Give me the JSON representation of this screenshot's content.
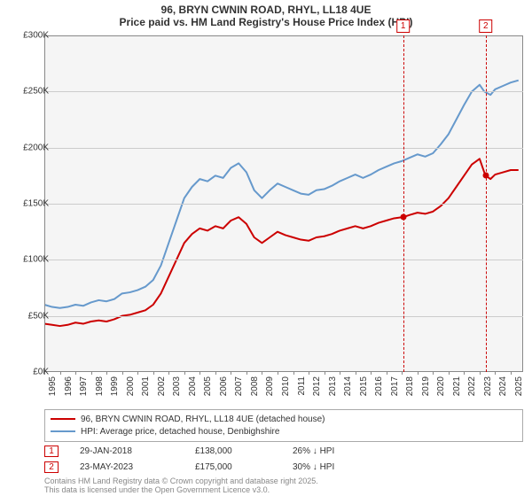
{
  "title": {
    "line1": "96, BRYN CWNIN ROAD, RHYL, LL18 4UE",
    "line2": "Price paid vs. HM Land Registry's House Price Index (HPI)"
  },
  "chart": {
    "type": "line",
    "background_color": "#f5f5f5",
    "plot_border_color": "#888888",
    "grid_color": "#cccccc",
    "x": {
      "min": 1995.0,
      "max": 2025.8,
      "ticks": [
        1995,
        1996,
        1997,
        1998,
        1999,
        2000,
        2001,
        2002,
        2003,
        2004,
        2005,
        2006,
        2007,
        2008,
        2009,
        2010,
        2011,
        2012,
        2013,
        2014,
        2015,
        2016,
        2017,
        2018,
        2019,
        2020,
        2021,
        2022,
        2023,
        2024,
        2025
      ],
      "label_fontsize": 10
    },
    "y": {
      "min": 0,
      "max": 300000,
      "tick_step": 50000,
      "tick_labels": [
        "£0K",
        "£50K",
        "£100K",
        "£150K",
        "£200K",
        "£250K",
        "£300K"
      ],
      "label_fontsize": 10
    },
    "series": [
      {
        "id": "property",
        "label": "96, BRYN CWNIN ROAD, RHYL, LL18 4UE (detached house)",
        "color": "#cc0000",
        "line_width": 2,
        "points": [
          [
            1995.0,
            43000
          ],
          [
            1995.5,
            42000
          ],
          [
            1996.0,
            41000
          ],
          [
            1996.5,
            42000
          ],
          [
            1997.0,
            44000
          ],
          [
            1997.5,
            43000
          ],
          [
            1998.0,
            45000
          ],
          [
            1998.5,
            46000
          ],
          [
            1999.0,
            45000
          ],
          [
            1999.5,
            47000
          ],
          [
            2000.0,
            50000
          ],
          [
            2000.5,
            51000
          ],
          [
            2001.0,
            53000
          ],
          [
            2001.5,
            55000
          ],
          [
            2002.0,
            60000
          ],
          [
            2002.5,
            70000
          ],
          [
            2003.0,
            85000
          ],
          [
            2003.5,
            100000
          ],
          [
            2004.0,
            115000
          ],
          [
            2004.5,
            123000
          ],
          [
            2005.0,
            128000
          ],
          [
            2005.5,
            126000
          ],
          [
            2006.0,
            130000
          ],
          [
            2006.5,
            128000
          ],
          [
            2007.0,
            135000
          ],
          [
            2007.5,
            138000
          ],
          [
            2008.0,
            132000
          ],
          [
            2008.5,
            120000
          ],
          [
            2009.0,
            115000
          ],
          [
            2009.5,
            120000
          ],
          [
            2010.0,
            125000
          ],
          [
            2010.5,
            122000
          ],
          [
            2011.0,
            120000
          ],
          [
            2011.5,
            118000
          ],
          [
            2012.0,
            117000
          ],
          [
            2012.5,
            120000
          ],
          [
            2013.0,
            121000
          ],
          [
            2013.5,
            123000
          ],
          [
            2014.0,
            126000
          ],
          [
            2014.5,
            128000
          ],
          [
            2015.0,
            130000
          ],
          [
            2015.5,
            128000
          ],
          [
            2016.0,
            130000
          ],
          [
            2016.5,
            133000
          ],
          [
            2017.0,
            135000
          ],
          [
            2017.5,
            137000
          ],
          [
            2018.0,
            138000
          ],
          [
            2018.08,
            138000
          ],
          [
            2018.5,
            140000
          ],
          [
            2019.0,
            142000
          ],
          [
            2019.5,
            141000
          ],
          [
            2020.0,
            143000
          ],
          [
            2020.5,
            148000
          ],
          [
            2021.0,
            155000
          ],
          [
            2021.5,
            165000
          ],
          [
            2022.0,
            175000
          ],
          [
            2022.5,
            185000
          ],
          [
            2023.0,
            190000
          ],
          [
            2023.3,
            178000
          ],
          [
            2023.4,
            175000
          ],
          [
            2023.7,
            172000
          ],
          [
            2024.0,
            176000
          ],
          [
            2024.5,
            178000
          ],
          [
            2025.0,
            180000
          ],
          [
            2025.5,
            180000
          ]
        ]
      },
      {
        "id": "hpi",
        "label": "HPI: Average price, detached house, Denbighshire",
        "color": "#6699cc",
        "line_width": 2,
        "points": [
          [
            1995.0,
            60000
          ],
          [
            1995.5,
            58000
          ],
          [
            1996.0,
            57000
          ],
          [
            1996.5,
            58000
          ],
          [
            1997.0,
            60000
          ],
          [
            1997.5,
            59000
          ],
          [
            1998.0,
            62000
          ],
          [
            1998.5,
            64000
          ],
          [
            1999.0,
            63000
          ],
          [
            1999.5,
            65000
          ],
          [
            2000.0,
            70000
          ],
          [
            2000.5,
            71000
          ],
          [
            2001.0,
            73000
          ],
          [
            2001.5,
            76000
          ],
          [
            2002.0,
            82000
          ],
          [
            2002.5,
            95000
          ],
          [
            2003.0,
            115000
          ],
          [
            2003.5,
            135000
          ],
          [
            2004.0,
            155000
          ],
          [
            2004.5,
            165000
          ],
          [
            2005.0,
            172000
          ],
          [
            2005.5,
            170000
          ],
          [
            2006.0,
            175000
          ],
          [
            2006.5,
            173000
          ],
          [
            2007.0,
            182000
          ],
          [
            2007.5,
            186000
          ],
          [
            2008.0,
            178000
          ],
          [
            2008.5,
            162000
          ],
          [
            2009.0,
            155000
          ],
          [
            2009.5,
            162000
          ],
          [
            2010.0,
            168000
          ],
          [
            2010.5,
            165000
          ],
          [
            2011.0,
            162000
          ],
          [
            2011.5,
            159000
          ],
          [
            2012.0,
            158000
          ],
          [
            2012.5,
            162000
          ],
          [
            2013.0,
            163000
          ],
          [
            2013.5,
            166000
          ],
          [
            2014.0,
            170000
          ],
          [
            2014.5,
            173000
          ],
          [
            2015.0,
            176000
          ],
          [
            2015.5,
            173000
          ],
          [
            2016.0,
            176000
          ],
          [
            2016.5,
            180000
          ],
          [
            2017.0,
            183000
          ],
          [
            2017.5,
            186000
          ],
          [
            2018.0,
            188000
          ],
          [
            2018.5,
            191000
          ],
          [
            2019.0,
            194000
          ],
          [
            2019.5,
            192000
          ],
          [
            2020.0,
            195000
          ],
          [
            2020.5,
            203000
          ],
          [
            2021.0,
            212000
          ],
          [
            2021.5,
            225000
          ],
          [
            2022.0,
            238000
          ],
          [
            2022.5,
            250000
          ],
          [
            2023.0,
            256000
          ],
          [
            2023.3,
            250000
          ],
          [
            2023.7,
            247000
          ],
          [
            2024.0,
            252000
          ],
          [
            2024.5,
            255000
          ],
          [
            2025.0,
            258000
          ],
          [
            2025.5,
            260000
          ]
        ]
      }
    ],
    "markers": [
      {
        "num": "1",
        "x": 2018.08,
        "y": 138000,
        "date": "29-JAN-2018",
        "price": "£138,000",
        "diff": "26% ↓ HPI"
      },
      {
        "num": "2",
        "x": 2023.39,
        "y": 175000,
        "date": "23-MAY-2023",
        "price": "£175,000",
        "diff": "30% ↓ HPI"
      }
    ]
  },
  "footer": {
    "line1": "Contains HM Land Registry data © Crown copyright and database right 2025.",
    "line2": "This data is licensed under the Open Government Licence v3.0."
  }
}
